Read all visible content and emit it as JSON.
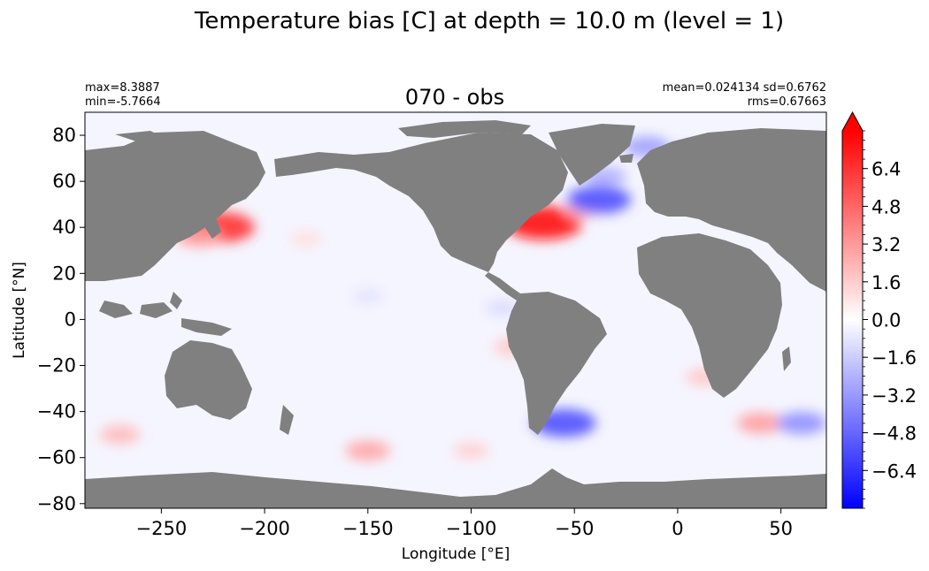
{
  "chart_data": {
    "type": "heatmap",
    "suptitle": "Temperature bias [C] at depth = 10.0 m (level = 1)",
    "title": "070 - obs",
    "stats_left": [
      "max=8.3887",
      "min=-5.7664"
    ],
    "stats_right": [
      "mean=0.024134 sd=0.6762",
      "rms=0.67663"
    ],
    "xlabel": "Longitude [°E]",
    "ylabel": "Latitude [°N]",
    "xlim": [
      -287,
      72
    ],
    "ylim": [
      -82,
      90
    ],
    "xticks": [
      -250,
      -200,
      -150,
      -100,
      -50,
      0,
      50
    ],
    "yticks": [
      -80,
      -60,
      -40,
      -20,
      0,
      20,
      40,
      60,
      80
    ],
    "colorbar": {
      "range": [
        -8,
        8
      ],
      "ticks": [
        -6.4,
        -4.8,
        -3.2,
        -1.6,
        0.0,
        1.6,
        3.2,
        4.8,
        6.4
      ],
      "tick_labels": [
        "−6.4",
        "−4.8",
        "−3.2",
        "−1.6",
        "0.0",
        "1.6",
        "3.2",
        "4.8",
        "6.4"
      ],
      "extend": "max",
      "colormap": "bwr"
    },
    "land_color": "#808080",
    "colors": {
      "negative": "#0000ff",
      "zero": "#ffffff",
      "positive": "#ff0000"
    },
    "anomalies": [
      {
        "lon": -222,
        "lat": 40,
        "value": 6.5
      },
      {
        "lon": -232,
        "lat": 36,
        "value": 3.0
      },
      {
        "lon": -65,
        "lat": 42,
        "value": 7.5
      },
      {
        "lon": -45,
        "lat": 48,
        "value": 2.0
      },
      {
        "lon": -38,
        "lat": 52,
        "value": -5.5
      },
      {
        "lon": -35,
        "lat": 62,
        "value": -2.5
      },
      {
        "lon": -15,
        "lat": 75,
        "value": -3.0
      },
      {
        "lon": 5,
        "lat": 72,
        "value": -2.0
      },
      {
        "lon": -55,
        "lat": -45,
        "value": -5.5
      },
      {
        "lon": 40,
        "lat": -45,
        "value": 3.0
      },
      {
        "lon": 60,
        "lat": -45,
        "value": -3.5
      },
      {
        "lon": -150,
        "lat": -57,
        "value": 2.8
      },
      {
        "lon": -100,
        "lat": -57,
        "value": 1.5
      },
      {
        "lon": -270,
        "lat": -50,
        "value": 2.2
      },
      {
        "lon": -180,
        "lat": 35,
        "value": 1.0
      },
      {
        "lon": -150,
        "lat": 10,
        "value": -0.9
      },
      {
        "lon": -80,
        "lat": -12,
        "value": 1.8
      },
      {
        "lon": 13,
        "lat": -25,
        "value": 1.8
      },
      {
        "lon": -85,
        "lat": 5,
        "value": -1.2
      }
    ]
  }
}
